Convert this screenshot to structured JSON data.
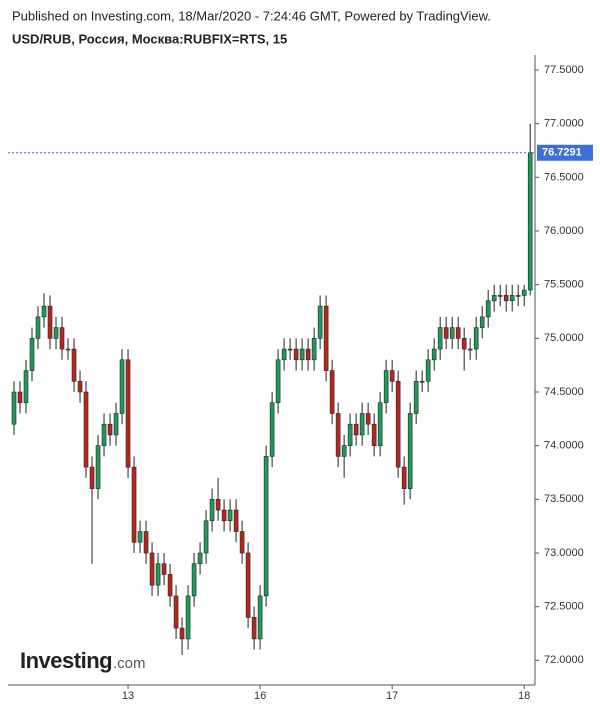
{
  "chart_data": {
    "type": "candlestick",
    "source": "Published on Investing.com, 18/Mar/2020 - 7:24:46 GMT, Powered by TradingView.",
    "title": "USD/RUB, Россия, Москва:RUBFIX=RTS, 15",
    "watermark": {
      "brand": "Investing",
      "suffix": ".com"
    },
    "up_color": "#1f9a5a",
    "down_color": "#b5281e",
    "x": [
      1,
      2,
      3,
      4,
      5,
      6,
      7,
      8,
      9,
      10,
      11,
      12,
      13,
      14,
      15,
      16,
      17,
      18,
      19,
      20,
      21,
      22,
      23,
      24,
      25,
      26,
      27,
      28,
      29,
      30,
      31,
      32,
      33,
      34,
      35,
      36,
      37,
      38,
      39,
      40,
      41,
      42,
      43,
      44,
      45,
      46,
      47,
      48,
      49,
      50,
      51,
      52,
      53,
      54,
      55,
      56,
      57,
      58,
      59,
      60,
      61,
      62,
      63,
      64,
      65,
      66,
      67,
      68,
      69,
      70,
      71,
      72,
      73,
      74,
      75,
      76,
      77,
      78,
      79,
      80,
      81,
      82,
      83,
      84,
      85,
      86,
      87
    ],
    "open": [
      74.2,
      74.5,
      74.4,
      74.7,
      75.0,
      75.2,
      75.3,
      75.0,
      75.1,
      74.9,
      74.9,
      74.6,
      74.5,
      73.8,
      73.6,
      74.0,
      74.2,
      74.1,
      74.3,
      74.8,
      73.8,
      73.1,
      73.2,
      73.0,
      72.7,
      72.9,
      72.8,
      72.6,
      72.3,
      72.2,
      72.6,
      72.9,
      73.0,
      73.3,
      73.5,
      73.4,
      73.3,
      73.4,
      73.2,
      73.0,
      72.4,
      72.2,
      72.6,
      73.9,
      74.4,
      74.8,
      74.9,
      74.9,
      74.8,
      74.9,
      74.8,
      75.0,
      75.3,
      74.7,
      74.3,
      73.9,
      74.0,
      74.2,
      74.1,
      74.3,
      74.2,
      74.0,
      74.4,
      74.7,
      74.6,
      73.8,
      73.6,
      74.3,
      74.6,
      74.6,
      74.8,
      74.9,
      75.1,
      75.0,
      75.1,
      75.0,
      74.9,
      74.9,
      75.1,
      75.2,
      75.35,
      75.4,
      75.4,
      75.35,
      75.4,
      75.4,
      75.45
    ],
    "high": [
      74.6,
      74.6,
      74.8,
      75.1,
      75.3,
      75.42,
      75.4,
      75.2,
      75.2,
      75.0,
      75.0,
      74.7,
      74.6,
      73.9,
      74.1,
      74.3,
      74.3,
      74.4,
      74.9,
      74.9,
      73.9,
      73.3,
      73.3,
      73.1,
      73.0,
      73.0,
      72.9,
      72.7,
      72.4,
      72.7,
      73.0,
      73.1,
      73.4,
      73.6,
      73.7,
      73.5,
      73.5,
      73.5,
      73.3,
      73.1,
      72.5,
      72.7,
      74.0,
      74.5,
      74.9,
      75.0,
      75.0,
      75.0,
      75.0,
      75.0,
      75.1,
      75.4,
      75.4,
      74.8,
      74.4,
      74.1,
      74.3,
      74.3,
      74.4,
      74.4,
      74.3,
      74.5,
      74.8,
      74.8,
      74.7,
      73.9,
      74.4,
      74.7,
      74.7,
      74.9,
      75.0,
      75.2,
      75.2,
      75.2,
      75.2,
      75.1,
      75.0,
      75.2,
      75.3,
      75.45,
      75.5,
      75.5,
      75.5,
      75.5,
      75.5,
      75.5,
      77.0
    ],
    "low": [
      74.1,
      74.3,
      74.3,
      74.6,
      74.9,
      75.1,
      74.9,
      74.9,
      74.8,
      74.8,
      74.5,
      74.4,
      73.7,
      72.9,
      73.5,
      73.9,
      74.0,
      74.0,
      74.2,
      73.7,
      73.0,
      73.0,
      72.9,
      72.6,
      72.6,
      72.7,
      72.5,
      72.2,
      72.05,
      72.1,
      72.5,
      72.8,
      72.9,
      73.2,
      73.3,
      73.2,
      73.2,
      73.1,
      72.9,
      72.3,
      72.1,
      72.1,
      72.5,
      73.8,
      74.3,
      74.7,
      74.8,
      74.7,
      74.7,
      74.7,
      74.7,
      74.9,
      74.6,
      74.2,
      73.8,
      73.7,
      73.9,
      74.0,
      74.0,
      74.1,
      73.9,
      73.9,
      74.3,
      74.5,
      73.7,
      73.45,
      73.5,
      74.2,
      74.5,
      74.5,
      74.7,
      74.8,
      74.9,
      74.9,
      74.9,
      74.7,
      74.8,
      74.8,
      75.0,
      75.1,
      75.25,
      75.3,
      75.25,
      75.25,
      75.3,
      75.3,
      75.4
    ],
    "close": [
      74.5,
      74.4,
      74.7,
      75.0,
      75.2,
      75.3,
      75.0,
      75.1,
      74.9,
      74.9,
      74.6,
      74.5,
      73.8,
      73.6,
      74.0,
      74.2,
      74.1,
      74.3,
      74.8,
      73.8,
      73.1,
      73.2,
      73.0,
      72.7,
      72.9,
      72.8,
      72.6,
      72.3,
      72.2,
      72.6,
      72.9,
      73.0,
      73.3,
      73.5,
      73.4,
      73.3,
      73.4,
      73.2,
      73.0,
      72.4,
      72.2,
      72.6,
      73.9,
      74.4,
      74.8,
      74.9,
      74.9,
      74.8,
      74.9,
      74.8,
      75.0,
      75.3,
      74.7,
      74.3,
      73.9,
      74.0,
      74.2,
      74.1,
      74.3,
      74.2,
      74.0,
      74.4,
      74.7,
      74.6,
      73.8,
      73.6,
      74.3,
      74.6,
      74.6,
      74.8,
      74.9,
      75.1,
      75.0,
      75.1,
      75.0,
      74.9,
      74.9,
      75.1,
      75.2,
      75.35,
      75.4,
      75.4,
      75.35,
      75.4,
      75.4,
      75.45,
      76.73
    ],
    "last_value": 76.7291,
    "last_color": "#3d6fd6",
    "xlim": [
      0,
      87.8
    ],
    "xticks": [
      {
        "value": 20,
        "label": "13"
      },
      {
        "value": 42,
        "label": "16"
      },
      {
        "value": 64,
        "label": "17"
      },
      {
        "value": 86,
        "label": "18"
      }
    ],
    "ylim": [
      71.77,
      77.64
    ],
    "yticks": [
      {
        "value": 72,
        "label": "72.0000"
      },
      {
        "value": 72.5,
        "label": "72.5000"
      },
      {
        "value": 73,
        "label": "73.0000"
      },
      {
        "value": 73.5,
        "label": "73.5000"
      },
      {
        "value": 74,
        "label": "74.0000"
      },
      {
        "value": 74.5,
        "label": "74.5000"
      },
      {
        "value": 75,
        "label": "75.0000"
      },
      {
        "value": 75.5,
        "label": "75.5000"
      },
      {
        "value": 76,
        "label": "76.0000"
      },
      {
        "value": 76.5,
        "label": "76.5000"
      },
      {
        "value": 77,
        "label": "77.0000"
      },
      {
        "value": 77.5,
        "label": "77.5000"
      }
    ]
  }
}
